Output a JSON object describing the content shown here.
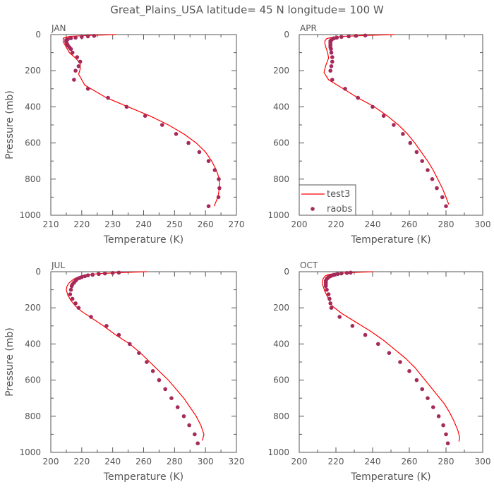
{
  "title": "Great_Plains_USA   latitude= 45 N longitude= 100 W",
  "legend": {
    "model_label": "test3",
    "obs_label": "raobs"
  },
  "colors": {
    "model": "#ff0000",
    "obs": "#a52a5a",
    "axis": "#555555"
  },
  "chart_data": [
    {
      "type": "line",
      "panel": "JAN",
      "xlabel": "Temperature (K)",
      "ylabel": "Pressure (mb)",
      "xlim": [
        210,
        270
      ],
      "xticks": [
        210,
        220,
        230,
        240,
        250,
        260,
        270
      ],
      "ylim": [
        1000,
        0
      ],
      "yticks": [
        0,
        200,
        400,
        600,
        800,
        1000
      ],
      "series": [
        {
          "name": "test3",
          "style": "line",
          "points": [
            [
              231,
              0
            ],
            [
              222,
              5
            ],
            [
              216,
              10
            ],
            [
              214,
              20
            ],
            [
              214,
              40
            ],
            [
              215,
              70
            ],
            [
              216,
              100
            ],
            [
              218,
              130
            ],
            [
              219.5,
              160
            ],
            [
              219.5,
              190
            ],
            [
              219,
              220
            ],
            [
              221,
              280
            ],
            [
              228,
              350
            ],
            [
              235,
              400
            ],
            [
              242,
              450
            ],
            [
              248,
              500
            ],
            [
              253,
              550
            ],
            [
              257,
              600
            ],
            [
              260,
              650
            ],
            [
              262,
              700
            ],
            [
              263.5,
              750
            ],
            [
              264.5,
              800
            ],
            [
              264.5,
              850
            ],
            [
              264,
              900
            ],
            [
              262.8,
              950
            ]
          ]
        },
        {
          "name": "raobs",
          "style": "markers",
          "points": [
            [
              224,
              7
            ],
            [
              222,
              10
            ],
            [
              220,
              13
            ],
            [
              218,
              17
            ],
            [
              216.5,
              20
            ],
            [
              215.5,
              25
            ],
            [
              215,
              30
            ],
            [
              215,
              35
            ],
            [
              215,
              40
            ],
            [
              215.2,
              50
            ],
            [
              215.5,
              60
            ],
            [
              216,
              70
            ],
            [
              216.5,
              80
            ],
            [
              217,
              100
            ],
            [
              218.5,
              125
            ],
            [
              219.5,
              150
            ],
            [
              219,
              175
            ],
            [
              218,
              200
            ],
            [
              217.5,
              250
            ],
            [
              222,
              300
            ],
            [
              228.5,
              350
            ],
            [
              234.5,
              400
            ],
            [
              240.5,
              450
            ],
            [
              246,
              500
            ],
            [
              250.5,
              550
            ],
            [
              254.5,
              600
            ],
            [
              258,
              650
            ],
            [
              261,
              700
            ],
            [
              263,
              750
            ],
            [
              264.3,
              800
            ],
            [
              264.5,
              850
            ],
            [
              264.2,
              900
            ],
            [
              261,
              950
            ]
          ]
        }
      ]
    },
    {
      "type": "line",
      "panel": "APR",
      "xlabel": "Temperature (K)",
      "ylabel": "",
      "xlim": [
        200,
        300
      ],
      "xticks": [
        200,
        220,
        240,
        260,
        280,
        300
      ],
      "ylim": [
        1000,
        0
      ],
      "yticks": [
        0,
        200,
        400,
        600,
        800,
        1000
      ],
      "series": [
        {
          "name": "test3",
          "style": "line",
          "points": [
            [
              252,
              0
            ],
            [
              235,
              5
            ],
            [
              224,
              10
            ],
            [
              218,
              15
            ],
            [
              215,
              22
            ],
            [
              214,
              35
            ],
            [
              214,
              50
            ],
            [
              214.5,
              70
            ],
            [
              215.5,
              100
            ],
            [
              216,
              130
            ],
            [
              214.5,
              170
            ],
            [
              213.5,
              210
            ],
            [
              216,
              250
            ],
            [
              224,
              300
            ],
            [
              232,
              350
            ],
            [
              241,
              400
            ],
            [
              248,
              450
            ],
            [
              254,
              500
            ],
            [
              259,
              550
            ],
            [
              263,
              600
            ],
            [
              266.5,
              650
            ],
            [
              270,
              700
            ],
            [
              273,
              750
            ],
            [
              275.5,
              800
            ],
            [
              278,
              850
            ],
            [
              280,
              900
            ],
            [
              281.5,
              940
            ]
          ]
        },
        {
          "name": "raobs",
          "style": "markers",
          "points": [
            [
              236,
              5
            ],
            [
              231,
              7
            ],
            [
              227,
              10
            ],
            [
              223,
              13
            ],
            [
              220.5,
              17
            ],
            [
              219,
              20
            ],
            [
              218,
              25
            ],
            [
              217.5,
              30
            ],
            [
              217,
              35
            ],
            [
              217,
              40
            ],
            [
              217,
              50
            ],
            [
              217,
              60
            ],
            [
              217,
              70
            ],
            [
              217.3,
              80
            ],
            [
              217.5,
              100
            ],
            [
              218,
              125
            ],
            [
              218,
              150
            ],
            [
              217.5,
              175
            ],
            [
              217,
              200
            ],
            [
              218,
              250
            ],
            [
              225,
              300
            ],
            [
              232,
              350
            ],
            [
              240,
              400
            ],
            [
              246,
              450
            ],
            [
              251.5,
              500
            ],
            [
              256.5,
              550
            ],
            [
              260.5,
              600
            ],
            [
              264,
              650
            ],
            [
              267,
              700
            ],
            [
              270,
              750
            ],
            [
              272.5,
              800
            ],
            [
              275,
              850
            ],
            [
              278,
              900
            ],
            [
              280,
              950
            ]
          ]
        }
      ]
    },
    {
      "type": "line",
      "panel": "JUL",
      "xlabel": "Temperature (K)",
      "ylabel": "Pressure (mb)",
      "xlim": [
        200,
        320
      ],
      "xticks": [
        200,
        220,
        240,
        260,
        280,
        300,
        320
      ],
      "ylim": [
        1000,
        0
      ],
      "yticks": [
        0,
        200,
        400,
        600,
        800,
        1000
      ],
      "series": [
        {
          "name": "test3",
          "style": "line",
          "points": [
            [
              262,
              0
            ],
            [
              245,
              5
            ],
            [
              233,
              10
            ],
            [
              225,
              15
            ],
            [
              219,
              25
            ],
            [
              215,
              40
            ],
            [
              212,
              60
            ],
            [
              210.5,
              80
            ],
            [
              210,
              100
            ],
            [
              211,
              130
            ],
            [
              213,
              160
            ],
            [
              216,
              190
            ],
            [
              220,
              220
            ],
            [
              227,
              260
            ],
            [
              234,
              300
            ],
            [
              242,
              350
            ],
            [
              251,
              400
            ],
            [
              258,
              450
            ],
            [
              264,
              500
            ],
            [
              270,
              550
            ],
            [
              276,
              600
            ],
            [
              281,
              650
            ],
            [
              286,
              700
            ],
            [
              290,
              750
            ],
            [
              294,
              800
            ],
            [
              297,
              850
            ],
            [
              299,
              900
            ],
            [
              298,
              935
            ]
          ]
        },
        {
          "name": "raobs",
          "style": "markers",
          "points": [
            [
              244,
              5
            ],
            [
              240,
              7
            ],
            [
              235,
              10
            ],
            [
              231,
              13
            ],
            [
              227,
              17
            ],
            [
              224,
              20
            ],
            [
              222,
              25
            ],
            [
              220,
              30
            ],
            [
              218.5,
              35
            ],
            [
              217,
              40
            ],
            [
              216,
              50
            ],
            [
              215,
              60
            ],
            [
              214,
              70
            ],
            [
              213.5,
              80
            ],
            [
              213,
              100
            ],
            [
              212.5,
              125
            ],
            [
              214,
              150
            ],
            [
              216,
              175
            ],
            [
              218,
              200
            ],
            [
              226,
              250
            ],
            [
              236,
              300
            ],
            [
              244,
              350
            ],
            [
              251,
              400
            ],
            [
              257,
              450
            ],
            [
              262,
              500
            ],
            [
              266,
              550
            ],
            [
              270,
              600
            ],
            [
              274,
              650
            ],
            [
              278,
              700
            ],
            [
              282,
              750
            ],
            [
              286,
              800
            ],
            [
              289.5,
              850
            ],
            [
              293,
              900
            ],
            [
              295,
              950
            ]
          ]
        }
      ]
    },
    {
      "type": "line",
      "panel": "OCT",
      "xlabel": "Temperature (K)",
      "ylabel": "",
      "xlim": [
        200,
        300
      ],
      "xticks": [
        200,
        220,
        240,
        260,
        280,
        300
      ],
      "ylim": [
        1000,
        0
      ],
      "yticks": [
        0,
        200,
        400,
        600,
        800,
        1000
      ],
      "series": [
        {
          "name": "test3",
          "style": "line",
          "points": [
            [
              240,
              0
            ],
            [
              228,
              5
            ],
            [
              220,
              10
            ],
            [
              216,
              15
            ],
            [
              214,
              25
            ],
            [
              213,
              40
            ],
            [
              212.5,
              60
            ],
            [
              213,
              80
            ],
            [
              214,
              110
            ],
            [
              216,
              150
            ],
            [
              218,
              190
            ],
            [
              223,
              230
            ],
            [
              231,
              280
            ],
            [
              239,
              330
            ],
            [
              246,
              380
            ],
            [
              252,
              430
            ],
            [
              258,
              480
            ],
            [
              263,
              530
            ],
            [
              267,
              580
            ],
            [
              271,
              630
            ],
            [
              275,
              680
            ],
            [
              279,
              730
            ],
            [
              282,
              780
            ],
            [
              284.5,
              830
            ],
            [
              286.5,
              880
            ],
            [
              287.5,
              920
            ],
            [
              287,
              940
            ]
          ]
        },
        {
          "name": "raobs",
          "style": "markers",
          "points": [
            [
              228,
              5
            ],
            [
              226,
              7
            ],
            [
              223,
              10
            ],
            [
              221,
              13
            ],
            [
              219,
              17
            ],
            [
              218,
              20
            ],
            [
              217,
              25
            ],
            [
              216,
              30
            ],
            [
              215.5,
              35
            ],
            [
              215,
              40
            ],
            [
              214.5,
              50
            ],
            [
              214.5,
              60
            ],
            [
              214.5,
              70
            ],
            [
              214.5,
              80
            ],
            [
              215,
              100
            ],
            [
              216,
              125
            ],
            [
              216.5,
              150
            ],
            [
              217,
              175
            ],
            [
              217.5,
              200
            ],
            [
              222,
              250
            ],
            [
              229,
              300
            ],
            [
              236,
              350
            ],
            [
              243,
              400
            ],
            [
              249,
              450
            ],
            [
              255,
              500
            ],
            [
              260,
              550
            ],
            [
              264,
              600
            ],
            [
              267,
              650
            ],
            [
              270,
              700
            ],
            [
              273,
              750
            ],
            [
              276,
              800
            ],
            [
              278.5,
              850
            ],
            [
              280,
              900
            ],
            [
              281,
              950
            ]
          ]
        }
      ]
    }
  ]
}
